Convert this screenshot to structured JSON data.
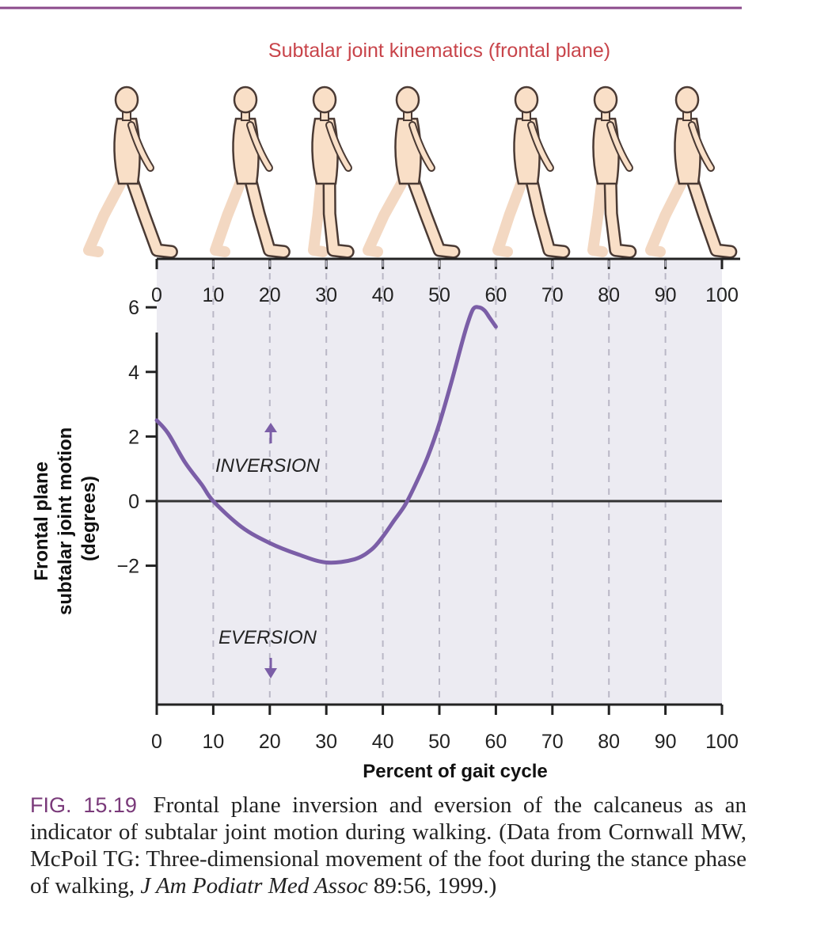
{
  "chart_data": {
    "type": "line",
    "title": "Subtalar joint kinematics (frontal plane)",
    "xlabel": "Percent of gait cycle",
    "ylabel_lines": [
      "Frontal plane",
      "subtalar joint motion",
      "(degrees)"
    ],
    "xlim": [
      0,
      100
    ],
    "ylim": [
      -6.3,
      7.5
    ],
    "x_ticks": [
      "0",
      "10",
      "20",
      "30",
      "40",
      "50",
      "60",
      "70",
      "80",
      "90",
      "100"
    ],
    "y_ticks": [
      "6",
      "4",
      "2",
      "0",
      "−2"
    ],
    "grid": "vertical dashed lines every 10%",
    "annotations": {
      "inversion": "INVERSION",
      "eversion": "EVERSION"
    },
    "series": [
      {
        "color": "#7b5ea7",
        "x": [
          0,
          2,
          5,
          8,
          10,
          15,
          20,
          25,
          30,
          35,
          38,
          40,
          42,
          44,
          46,
          48,
          50,
          52,
          54,
          55,
          56,
          57,
          58,
          59,
          60
        ],
        "y": [
          2.5,
          2.1,
          1.2,
          0.5,
          0.0,
          -0.8,
          -1.3,
          -1.65,
          -1.9,
          -1.8,
          -1.5,
          -1.1,
          -0.6,
          -0.1,
          0.6,
          1.4,
          2.4,
          3.6,
          4.9,
          5.5,
          5.95,
          6.0,
          5.9,
          5.65,
          5.4
        ]
      }
    ]
  },
  "caption": {
    "label": "FIG. 15.19",
    "text": "Frontal plane inversion and eversion of the calcaneus as an indicator of subtalar joint motion during walking. (Data from Cornwall MW, McPoil TG: Three-dimensional movement of the foot during the stance phase of walking,",
    "journal": "J Am Podiatr Med Assoc",
    "tail": "89:56, 1999.)"
  },
  "colors": {
    "curve": "#7b5ea7",
    "panel": "#ecebf2",
    "title": "#c8444a",
    "header_rule": "#8b4a8b",
    "figure_fill": "#f9dfc7",
    "figure_outline": "#4a3a34"
  }
}
